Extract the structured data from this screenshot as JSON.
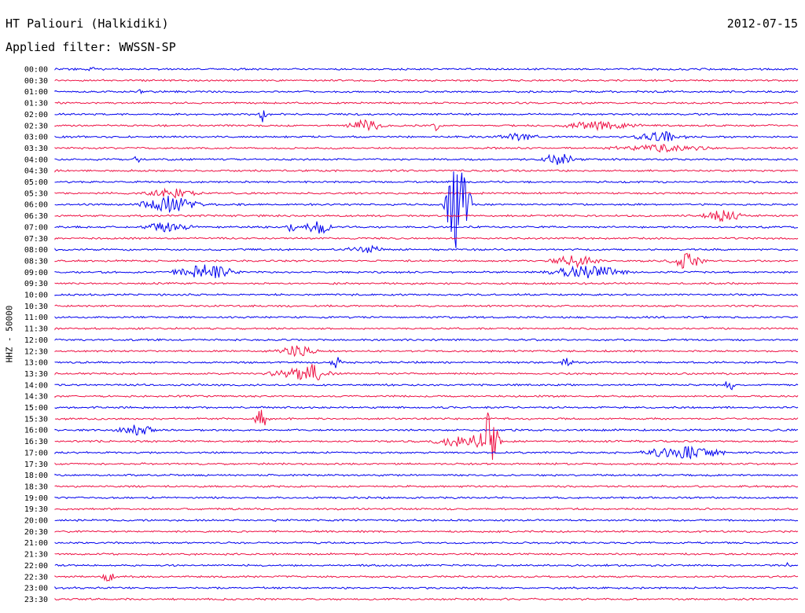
{
  "header": {
    "station": "HT Paliouri (Halkidiki)",
    "date": "2012-07-15",
    "filter": "Applied filter: WWSSN-SP"
  },
  "axis": {
    "ylabel": "HHZ - 50000"
  },
  "colors": {
    "even_trace": "#0000ee",
    "odd_trace": "#ee1144",
    "text": "#000000"
  },
  "times": [
    "00:00",
    "00:30",
    "01:00",
    "01:30",
    "02:00",
    "02:30",
    "03:00",
    "03:30",
    "04:00",
    "04:30",
    "05:00",
    "05:30",
    "06:00",
    "06:30",
    "07:00",
    "07:30",
    "08:00",
    "08:30",
    "09:00",
    "09:30",
    "10:00",
    "10:30",
    "11:00",
    "11:30",
    "12:00",
    "12:30",
    "13:00",
    "13:30",
    "14:00",
    "14:30",
    "15:00",
    "15:30",
    "16:00",
    "16:30",
    "17:00",
    "17:30",
    "18:00",
    "18:30",
    "19:00",
    "19:30",
    "20:00",
    "20:30",
    "21:00",
    "21:30",
    "22:00",
    "22:30",
    "23:00",
    "23:30"
  ]
}
